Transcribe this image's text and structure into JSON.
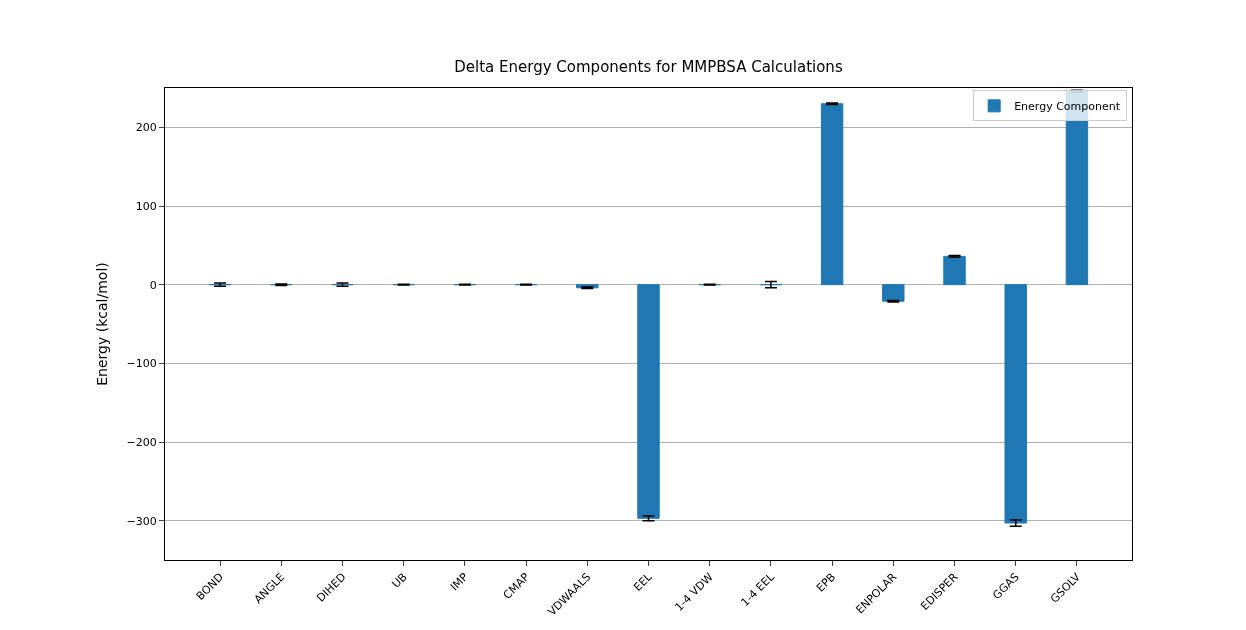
{
  "chart_data": {
    "type": "bar",
    "title": "Delta Energy Components for MMPBSA Calculations",
    "ylabel": "Energy (kcal/mol)",
    "categories": [
      "BOND",
      "ANGLE",
      "DIHED",
      "UB",
      "IMP",
      "CMAP",
      "VDWAALS",
      "EEL",
      "1-4 VDW",
      "1-4 EEL",
      "EPB",
      "ENPOLAR",
      "EDISPER",
      "GGAS",
      "GSOLV"
    ],
    "series": [
      {
        "name": "Energy Component",
        "color": "#1f77b4",
        "values": [
          0,
          0,
          0,
          0,
          0,
          0,
          -4,
          -297,
          0,
          0,
          230,
          -21,
          36,
          -303,
          246
        ],
        "errors": [
          2,
          1,
          2,
          0.5,
          0.5,
          0.5,
          1,
          3,
          0.5,
          4,
          1,
          1,
          1,
          4,
          1
        ]
      }
    ],
    "ylim": [
      -350,
      250
    ],
    "yticks": [
      {
        "value": -300,
        "label": "−300"
      },
      {
        "value": -200,
        "label": "−200"
      },
      {
        "value": -100,
        "label": "−100"
      },
      0,
      100,
      200
    ],
    "grid": "y",
    "legend": "top right"
  }
}
